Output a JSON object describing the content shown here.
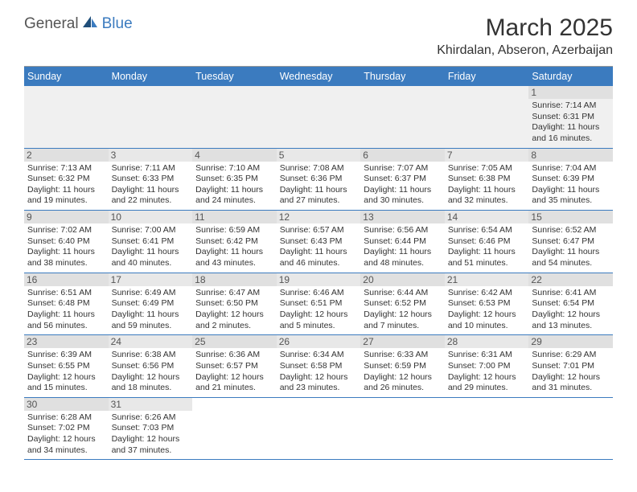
{
  "logo": {
    "part1": "General",
    "part2": "Blue"
  },
  "title": "March 2025",
  "location": "Khirdalan, Abseron, Azerbaijan",
  "day_labels": [
    "Sunday",
    "Monday",
    "Tuesday",
    "Wednesday",
    "Thursday",
    "Friday",
    "Saturday"
  ],
  "colors": {
    "header_bg": "#3b7bbf",
    "header_text": "#ffffff",
    "grid_line": "#3b7bbf",
    "daynum_bg": "#e8e8e8",
    "text": "#333333"
  },
  "weeks": [
    [
      null,
      null,
      null,
      null,
      null,
      null,
      {
        "n": "1",
        "sunrise": "Sunrise: 7:14 AM",
        "sunset": "Sunset: 6:31 PM",
        "daylight": "Daylight: 11 hours and 16 minutes."
      }
    ],
    [
      {
        "n": "2",
        "sunrise": "Sunrise: 7:13 AM",
        "sunset": "Sunset: 6:32 PM",
        "daylight": "Daylight: 11 hours and 19 minutes."
      },
      {
        "n": "3",
        "sunrise": "Sunrise: 7:11 AM",
        "sunset": "Sunset: 6:33 PM",
        "daylight": "Daylight: 11 hours and 22 minutes."
      },
      {
        "n": "4",
        "sunrise": "Sunrise: 7:10 AM",
        "sunset": "Sunset: 6:35 PM",
        "daylight": "Daylight: 11 hours and 24 minutes."
      },
      {
        "n": "5",
        "sunrise": "Sunrise: 7:08 AM",
        "sunset": "Sunset: 6:36 PM",
        "daylight": "Daylight: 11 hours and 27 minutes."
      },
      {
        "n": "6",
        "sunrise": "Sunrise: 7:07 AM",
        "sunset": "Sunset: 6:37 PM",
        "daylight": "Daylight: 11 hours and 30 minutes."
      },
      {
        "n": "7",
        "sunrise": "Sunrise: 7:05 AM",
        "sunset": "Sunset: 6:38 PM",
        "daylight": "Daylight: 11 hours and 32 minutes."
      },
      {
        "n": "8",
        "sunrise": "Sunrise: 7:04 AM",
        "sunset": "Sunset: 6:39 PM",
        "daylight": "Daylight: 11 hours and 35 minutes."
      }
    ],
    [
      {
        "n": "9",
        "sunrise": "Sunrise: 7:02 AM",
        "sunset": "Sunset: 6:40 PM",
        "daylight": "Daylight: 11 hours and 38 minutes."
      },
      {
        "n": "10",
        "sunrise": "Sunrise: 7:00 AM",
        "sunset": "Sunset: 6:41 PM",
        "daylight": "Daylight: 11 hours and 40 minutes."
      },
      {
        "n": "11",
        "sunrise": "Sunrise: 6:59 AM",
        "sunset": "Sunset: 6:42 PM",
        "daylight": "Daylight: 11 hours and 43 minutes."
      },
      {
        "n": "12",
        "sunrise": "Sunrise: 6:57 AM",
        "sunset": "Sunset: 6:43 PM",
        "daylight": "Daylight: 11 hours and 46 minutes."
      },
      {
        "n": "13",
        "sunrise": "Sunrise: 6:56 AM",
        "sunset": "Sunset: 6:44 PM",
        "daylight": "Daylight: 11 hours and 48 minutes."
      },
      {
        "n": "14",
        "sunrise": "Sunrise: 6:54 AM",
        "sunset": "Sunset: 6:46 PM",
        "daylight": "Daylight: 11 hours and 51 minutes."
      },
      {
        "n": "15",
        "sunrise": "Sunrise: 6:52 AM",
        "sunset": "Sunset: 6:47 PM",
        "daylight": "Daylight: 11 hours and 54 minutes."
      }
    ],
    [
      {
        "n": "16",
        "sunrise": "Sunrise: 6:51 AM",
        "sunset": "Sunset: 6:48 PM",
        "daylight": "Daylight: 11 hours and 56 minutes."
      },
      {
        "n": "17",
        "sunrise": "Sunrise: 6:49 AM",
        "sunset": "Sunset: 6:49 PM",
        "daylight": "Daylight: 11 hours and 59 minutes."
      },
      {
        "n": "18",
        "sunrise": "Sunrise: 6:47 AM",
        "sunset": "Sunset: 6:50 PM",
        "daylight": "Daylight: 12 hours and 2 minutes."
      },
      {
        "n": "19",
        "sunrise": "Sunrise: 6:46 AM",
        "sunset": "Sunset: 6:51 PM",
        "daylight": "Daylight: 12 hours and 5 minutes."
      },
      {
        "n": "20",
        "sunrise": "Sunrise: 6:44 AM",
        "sunset": "Sunset: 6:52 PM",
        "daylight": "Daylight: 12 hours and 7 minutes."
      },
      {
        "n": "21",
        "sunrise": "Sunrise: 6:42 AM",
        "sunset": "Sunset: 6:53 PM",
        "daylight": "Daylight: 12 hours and 10 minutes."
      },
      {
        "n": "22",
        "sunrise": "Sunrise: 6:41 AM",
        "sunset": "Sunset: 6:54 PM",
        "daylight": "Daylight: 12 hours and 13 minutes."
      }
    ],
    [
      {
        "n": "23",
        "sunrise": "Sunrise: 6:39 AM",
        "sunset": "Sunset: 6:55 PM",
        "daylight": "Daylight: 12 hours and 15 minutes."
      },
      {
        "n": "24",
        "sunrise": "Sunrise: 6:38 AM",
        "sunset": "Sunset: 6:56 PM",
        "daylight": "Daylight: 12 hours and 18 minutes."
      },
      {
        "n": "25",
        "sunrise": "Sunrise: 6:36 AM",
        "sunset": "Sunset: 6:57 PM",
        "daylight": "Daylight: 12 hours and 21 minutes."
      },
      {
        "n": "26",
        "sunrise": "Sunrise: 6:34 AM",
        "sunset": "Sunset: 6:58 PM",
        "daylight": "Daylight: 12 hours and 23 minutes."
      },
      {
        "n": "27",
        "sunrise": "Sunrise: 6:33 AM",
        "sunset": "Sunset: 6:59 PM",
        "daylight": "Daylight: 12 hours and 26 minutes."
      },
      {
        "n": "28",
        "sunrise": "Sunrise: 6:31 AM",
        "sunset": "Sunset: 7:00 PM",
        "daylight": "Daylight: 12 hours and 29 minutes."
      },
      {
        "n": "29",
        "sunrise": "Sunrise: 6:29 AM",
        "sunset": "Sunset: 7:01 PM",
        "daylight": "Daylight: 12 hours and 31 minutes."
      }
    ],
    [
      {
        "n": "30",
        "sunrise": "Sunrise: 6:28 AM",
        "sunset": "Sunset: 7:02 PM",
        "daylight": "Daylight: 12 hours and 34 minutes."
      },
      {
        "n": "31",
        "sunrise": "Sunrise: 6:26 AM",
        "sunset": "Sunset: 7:03 PM",
        "daylight": "Daylight: 12 hours and 37 minutes."
      },
      null,
      null,
      null,
      null,
      null
    ]
  ]
}
